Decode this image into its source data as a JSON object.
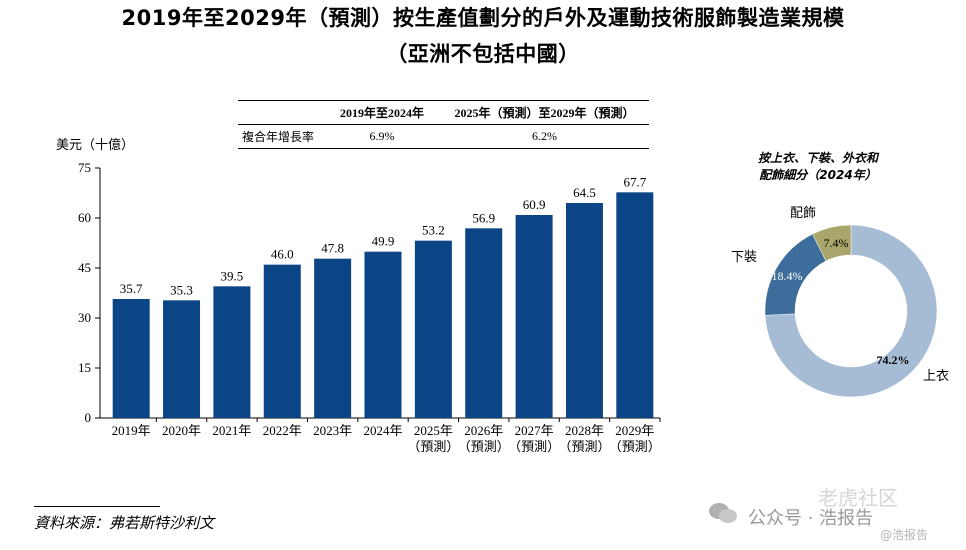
{
  "title_line1": "2019年至2029年（預測）按生產值劃分的戶外及運動技術服飾製造業規模",
  "title_line2": "（亞洲不包括中國）",
  "cagr_table": {
    "header": [
      "",
      "2019年至2024年",
      "2025年（預測）至2029年（預測）"
    ],
    "row_label": "複合年增長率",
    "values": [
      "6.9%",
      "6.2%"
    ]
  },
  "chart_data": [
    {
      "type": "bar",
      "ylabel": "美元（十億）",
      "ylim": [
        0,
        75
      ],
      "yticks": [
        "0",
        "15",
        "30",
        "45",
        "60",
        "75"
      ],
      "categories": [
        [
          "2019年"
        ],
        [
          "2020年"
        ],
        [
          "2021年"
        ],
        [
          "2022年"
        ],
        [
          "2023年"
        ],
        [
          "2024年"
        ],
        [
          "2025年",
          "（預測）"
        ],
        [
          "2026年",
          "（預測）"
        ],
        [
          "2027年",
          "（預測）"
        ],
        [
          "2028年",
          "（預測）"
        ],
        [
          "2029年",
          "（預測）"
        ]
      ],
      "values": [
        35.7,
        35.3,
        39.5,
        46.0,
        47.8,
        49.9,
        53.2,
        56.9,
        60.9,
        64.5,
        67.7
      ],
      "value_labels": [
        "35.7",
        "35.3",
        "39.5",
        "46.0",
        "47.8",
        "49.9",
        "53.2",
        "56.9",
        "60.9",
        "64.5",
        "67.7"
      ],
      "bar_color": "#0b4585",
      "grid": false
    },
    {
      "type": "pie",
      "variant": "donut",
      "title": [
        "按上衣、下裝、外衣和",
        "配飾細分（2024年）"
      ],
      "slices": [
        {
          "name": "上衣",
          "value": 74.2,
          "label": "74.2%",
          "color": "#a6bcd4"
        },
        {
          "name": "下裝",
          "value": 18.4,
          "label": "18.4%",
          "color": "#3d6d9a"
        },
        {
          "name": "配飾",
          "value": 7.4,
          "label": "7.4%",
          "color": "#a8a66a"
        }
      ]
    }
  ],
  "source": "資料來源：弗若斯特沙利文",
  "watermarks": {
    "wechat": "公众号 · 浩报告",
    "top": "老虎社区",
    "bottom": "@浩报告"
  }
}
